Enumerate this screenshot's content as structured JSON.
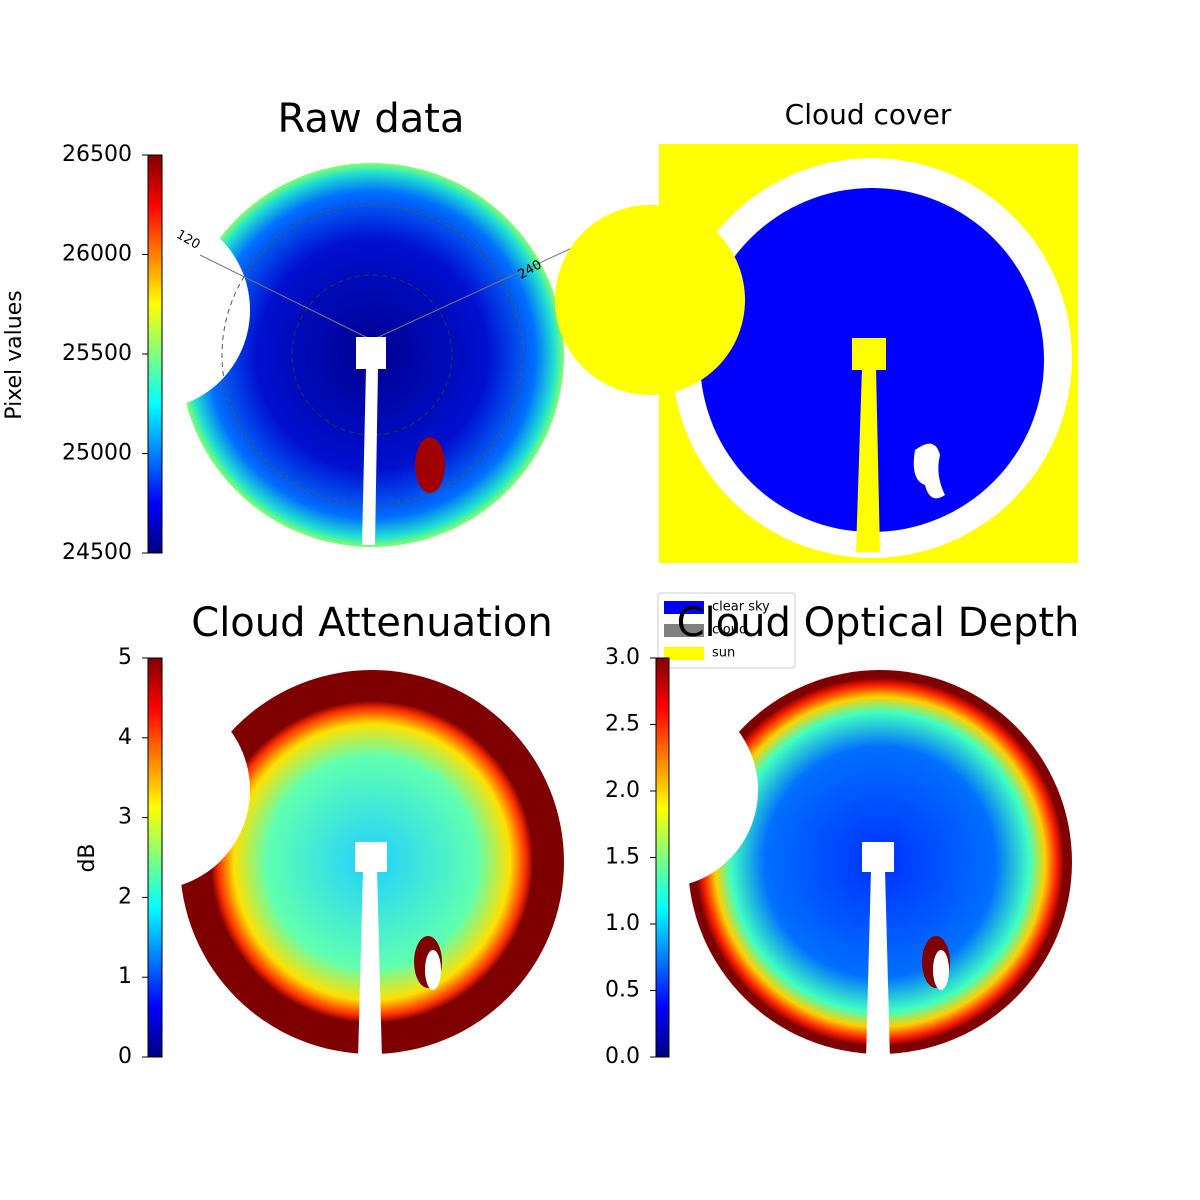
{
  "chart_data": [
    {
      "type": "image",
      "title": "Raw data",
      "colorbar_label": "Pixel values",
      "ylim": [
        24500,
        26500
      ],
      "yticks": [
        24500,
        25000,
        25500,
        26000,
        26500
      ],
      "annotations": [
        "120",
        "240"
      ]
    },
    {
      "type": "image",
      "title": "Cloud cover",
      "series": [
        {
          "name": "clear sky",
          "color": "#0000ff"
        },
        {
          "name": "cloud",
          "color": "#808080"
        },
        {
          "name": "sun",
          "color": "#ffff00"
        }
      ]
    },
    {
      "type": "image",
      "title": "Cloud Attenuation",
      "colorbar_label": "dB",
      "ylim": [
        0,
        5
      ],
      "yticks": [
        0,
        1,
        2,
        3,
        4,
        5
      ]
    },
    {
      "type": "image",
      "title": "Cloud Optical Depth",
      "ylim": [
        0,
        3
      ],
      "yticks": [
        {
          "value": 0,
          "label": "0.0"
        },
        0.5,
        {
          "value": 1,
          "label": "1.0"
        },
        1.5,
        {
          "value": 2,
          "label": "2.0"
        },
        2.5,
        {
          "value": 3,
          "label": "3.0"
        }
      ]
    }
  ]
}
